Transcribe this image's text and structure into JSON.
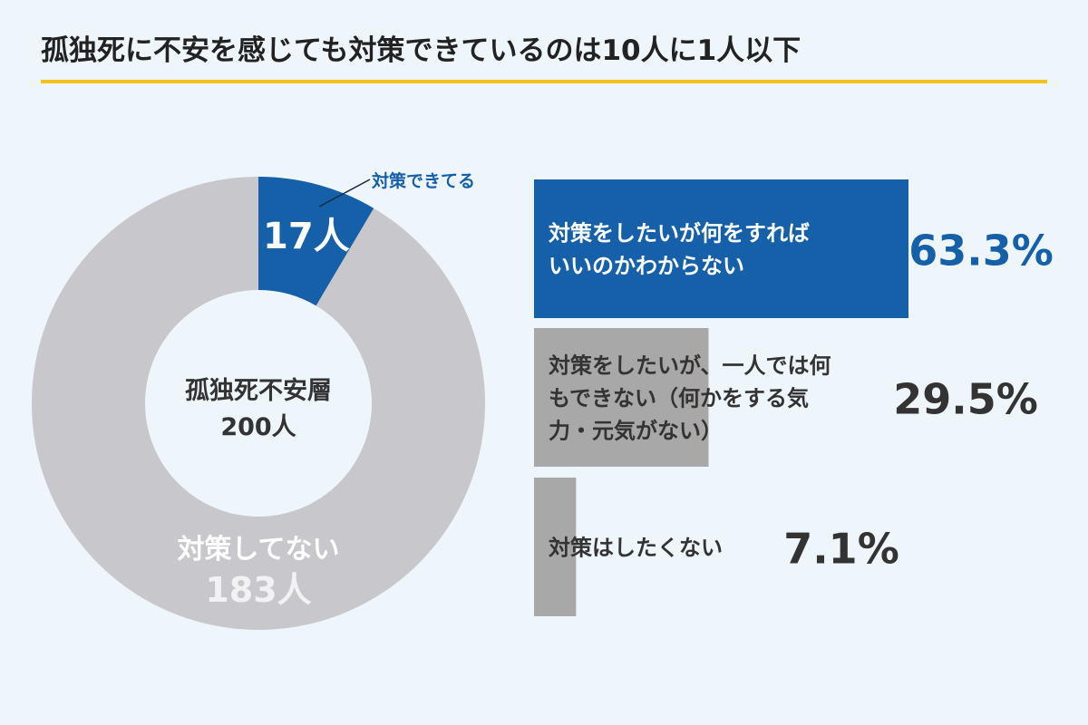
{
  "title": "孤独死に不安を感じても対策できているのは10人に1人以下",
  "colors": {
    "accent": "#1560a8",
    "donut_gray": "#c8c7cc",
    "bar_gray": "#a8a8a8",
    "underline": "#f5c21b",
    "background": "#eef6fc"
  },
  "chart_data": [
    {
      "type": "pie",
      "variant": "donut",
      "center_label": [
        "孤独死不安層",
        "200人"
      ],
      "total": 200,
      "slices": [
        {
          "label": "対策できてる",
          "value": 17,
          "value_label": "17人",
          "color": "#1560a8"
        },
        {
          "label": "対策してない",
          "value": 183,
          "value_label": "183人",
          "color": "#c8c7cc"
        }
      ]
    },
    {
      "type": "bar",
      "orientation": "horizontal",
      "unit": "%",
      "categories": [
        [
          "対策をしたいが何をすれば",
          "いいのかわからない"
        ],
        [
          "対策をしたいが、一人では何",
          "もできない（何かをする気",
          "力・元気がない）"
        ],
        [
          "対策はしたくない"
        ]
      ],
      "values": [
        63.3,
        29.5,
        7.1
      ],
      "value_labels": [
        "63.3%",
        "29.5%",
        "7.1%"
      ],
      "colors": [
        "#1560a8",
        "#a8a8a8",
        "#a8a8a8"
      ]
    }
  ]
}
